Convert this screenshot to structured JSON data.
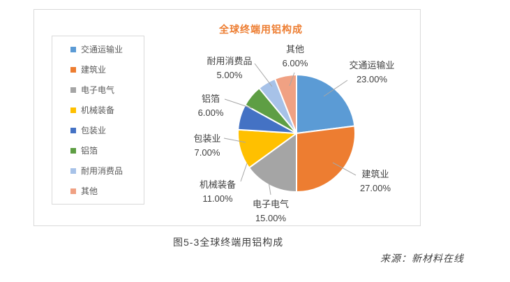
{
  "chart": {
    "title": "全球终端用铝构成",
    "title_color": "#ED7D31",
    "caption": "图5-3全球终端用铝构成",
    "source": "来源：新材料在线"
  },
  "chart_data": {
    "type": "pie",
    "title": "全球终端用铝构成",
    "categories": [
      "交通运输业",
      "建筑业",
      "电子电气",
      "机械装备",
      "包装业",
      "铝箔",
      "耐用消费品",
      "其他"
    ],
    "values": [
      23,
      27,
      15,
      11,
      7,
      6,
      5,
      6
    ],
    "labels": [
      "23.00%",
      "27.00%",
      "15.00%",
      "11.00%",
      "7.00%",
      "6.00%",
      "5.00%",
      "6.00%"
    ],
    "colors": [
      "#5B9BD5",
      "#ED7D31",
      "#A5A5A5",
      "#FFC000",
      "#4472C4",
      "#5E9E44",
      "#A7C2E8",
      "#F0A183"
    ],
    "legend_position": "left",
    "start_angle_deg": 0,
    "direction": "clockwise",
    "leader_line_color": "#A6A6A6",
    "slice_border_color": "#FFFFFF"
  }
}
